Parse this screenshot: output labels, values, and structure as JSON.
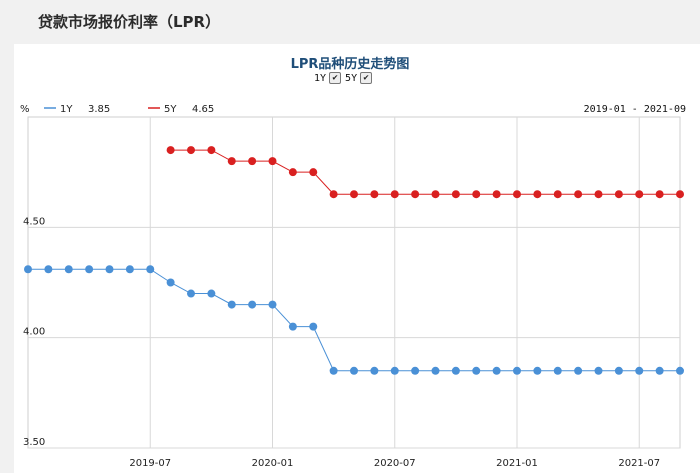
{
  "page": {
    "title": "贷款市场报价利率（LPR）"
  },
  "chart_data": {
    "type": "line",
    "title": "LPR品种历史走势图",
    "toggles": [
      {
        "label": "1Y",
        "checked": true
      },
      {
        "label": "5Y",
        "checked": true
      }
    ],
    "y_unit": "%",
    "ylim": [
      3.5,
      5.0
    ],
    "y_ticks": [
      "3.50",
      "4.00",
      "4.50"
    ],
    "y_tick_values": [
      3.5,
      4.0,
      4.5
    ],
    "x_tick_labels": [
      "2019-07",
      "2020-01",
      "2020-07",
      "2021-01",
      "2021-07"
    ],
    "date_range": "2019-01 - 2021-09",
    "grid": true,
    "legend_position": "top-left",
    "x": [
      "2019-01",
      "2019-02",
      "2019-03",
      "2019-04",
      "2019-05",
      "2019-06",
      "2019-07",
      "2019-08",
      "2019-09",
      "2019-10",
      "2019-11",
      "2019-12",
      "2020-01",
      "2020-02",
      "2020-03",
      "2020-04",
      "2020-05",
      "2020-06",
      "2020-07",
      "2020-08",
      "2020-09",
      "2020-10",
      "2020-11",
      "2020-12",
      "2021-01",
      "2021-02",
      "2021-03",
      "2021-04",
      "2021-05",
      "2021-06",
      "2021-07",
      "2021-08",
      "2021-09"
    ],
    "series": [
      {
        "name": "1Y",
        "latest": "3.85",
        "color": "#4a90d6",
        "values": [
          4.31,
          4.31,
          4.31,
          4.31,
          4.31,
          4.31,
          4.31,
          4.25,
          4.2,
          4.2,
          4.15,
          4.15,
          4.15,
          4.05,
          4.05,
          3.85,
          3.85,
          3.85,
          3.85,
          3.85,
          3.85,
          3.85,
          3.85,
          3.85,
          3.85,
          3.85,
          3.85,
          3.85,
          3.85,
          3.85,
          3.85,
          3.85,
          3.85
        ]
      },
      {
        "name": "5Y",
        "latest": "4.65",
        "color": "#d92020",
        "values": [
          null,
          null,
          null,
          null,
          null,
          null,
          null,
          4.85,
          4.85,
          4.85,
          4.8,
          4.8,
          4.8,
          4.75,
          4.75,
          4.65,
          4.65,
          4.65,
          4.65,
          4.65,
          4.65,
          4.65,
          4.65,
          4.65,
          4.65,
          4.65,
          4.65,
          4.65,
          4.65,
          4.65,
          4.65,
          4.65,
          4.65
        ]
      }
    ]
  }
}
